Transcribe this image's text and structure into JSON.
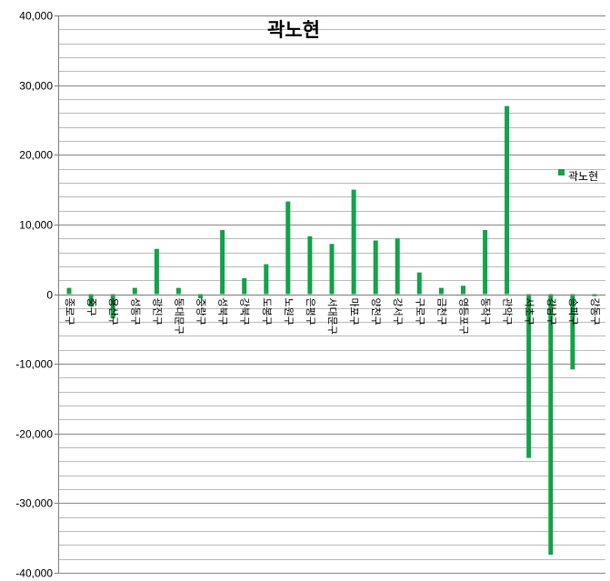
{
  "chart_data": {
    "type": "bar",
    "title": "곽노현",
    "xlabel": "",
    "ylabel": "",
    "ylim": [
      -40000,
      40000
    ],
    "yticks": [
      40000,
      30000,
      20000,
      10000,
      0,
      -10000,
      -20000,
      -30000,
      -40000
    ],
    "ytick_labels": [
      "40,000",
      "30,000",
      "20,000",
      "10,000",
      "0",
      "-10,000",
      "-20,000",
      "-30,000",
      "-40,000"
    ],
    "grid": true,
    "legend_position": "right",
    "color": "#13a24a",
    "categories": [
      "종로구",
      "중구",
      "용산구",
      "성동구",
      "광진구",
      "동대문구",
      "중랑구",
      "성북구",
      "강북구",
      "도봉구",
      "노원구",
      "은평구",
      "서대문구",
      "마포구",
      "양천구",
      "강서구",
      "구로구",
      "금천구",
      "영등포구",
      "동작구",
      "관악구",
      "서초구",
      "강남구",
      "송파구",
      "강동구"
    ],
    "series": [
      {
        "name": "곽노현",
        "values": [
          900,
          -1800,
          -3500,
          900,
          6500,
          900,
          -600,
          9200,
          2300,
          4300,
          13300,
          8300,
          7200,
          15000,
          7700,
          8000,
          3100,
          900,
          1200,
          9200,
          27000,
          -23500,
          -37400,
          -10800,
          -300
        ]
      }
    ]
  }
}
